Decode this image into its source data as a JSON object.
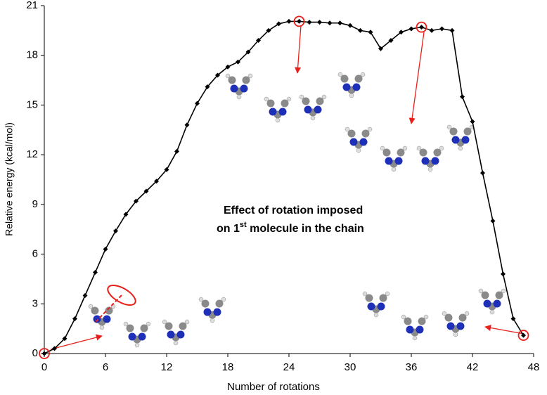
{
  "chart_data": {
    "type": "line",
    "x_label": "Number of rotations",
    "y_label": "Relative energy (kcal/mol)",
    "annotation": [
      "Effect of rotation imposed",
      "on 1",
      "st",
      " molecule in the chain"
    ],
    "x": [
      0,
      1,
      2,
      3,
      4,
      5,
      6,
      7,
      8,
      9,
      10,
      11,
      12,
      13,
      14,
      15,
      16,
      17,
      18,
      19,
      20,
      21,
      22,
      23,
      24,
      25,
      26,
      27,
      28,
      29,
      30,
      31,
      32,
      33,
      34,
      35,
      36,
      37,
      38,
      39,
      40,
      41,
      42,
      43,
      44,
      45,
      46,
      47
    ],
    "series": [
      {
        "color": "#000000",
        "values": [
          0,
          0.3,
          0.9,
          2.1,
          3.5,
          4.9,
          6.3,
          7.4,
          8.4,
          9.2,
          9.8,
          10.4,
          11.1,
          12.2,
          13.8,
          15.1,
          16.1,
          16.8,
          17.3,
          17.6,
          18.2,
          18.9,
          19.5,
          19.9,
          20.05,
          20.05,
          20.0,
          20.0,
          19.95,
          19.95,
          19.8,
          19.5,
          19.4,
          18.4,
          18.9,
          19.4,
          19.6,
          19.7,
          19.5,
          19.6,
          19.5,
          15.5,
          14.0,
          10.9,
          8.0,
          4.8,
          2.1,
          1.1
        ]
      }
    ],
    "highlighted_points": [
      0,
      25,
      37,
      47
    ],
    "highlight_color": "#e8201c",
    "xlim": [
      0,
      48
    ],
    "xticks": [
      0,
      6,
      12,
      18,
      24,
      30,
      36,
      42,
      48
    ],
    "ylim": [
      0,
      21
    ],
    "yticks": [
      0,
      3,
      6,
      9,
      12,
      15,
      18,
      21
    ],
    "grid": false
  }
}
